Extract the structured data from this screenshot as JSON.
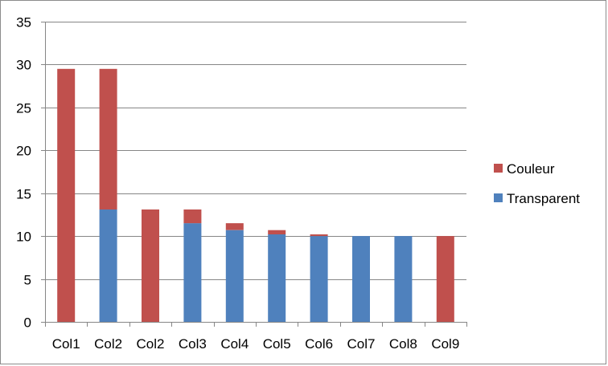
{
  "chart_data": {
    "type": "bar",
    "stacked": true,
    "categories": [
      "Col1",
      "Col2",
      "Col2",
      "Col3",
      "Col4",
      "Col5",
      "Col6",
      "Col7",
      "Col8",
      "Col9"
    ],
    "series": [
      {
        "name": "Transparent",
        "color": "#4f81bd",
        "values": [
          0,
          13.1,
          0,
          11.5,
          10.7,
          10.2,
          10.0,
          10.0,
          10.0,
          0
        ]
      },
      {
        "name": "Couleur",
        "color": "#c0504d",
        "values": [
          29.5,
          16.4,
          13.1,
          1.6,
          0.8,
          0.5,
          0.2,
          0,
          0,
          10.0
        ]
      }
    ],
    "title": "",
    "xlabel": "",
    "ylabel": "",
    "ylim": [
      0,
      35
    ],
    "yticks": [
      0,
      5,
      10,
      15,
      20,
      25,
      30,
      35
    ],
    "grid": true,
    "legend_position": "right",
    "legend_order": [
      "Couleur",
      "Transparent"
    ]
  }
}
